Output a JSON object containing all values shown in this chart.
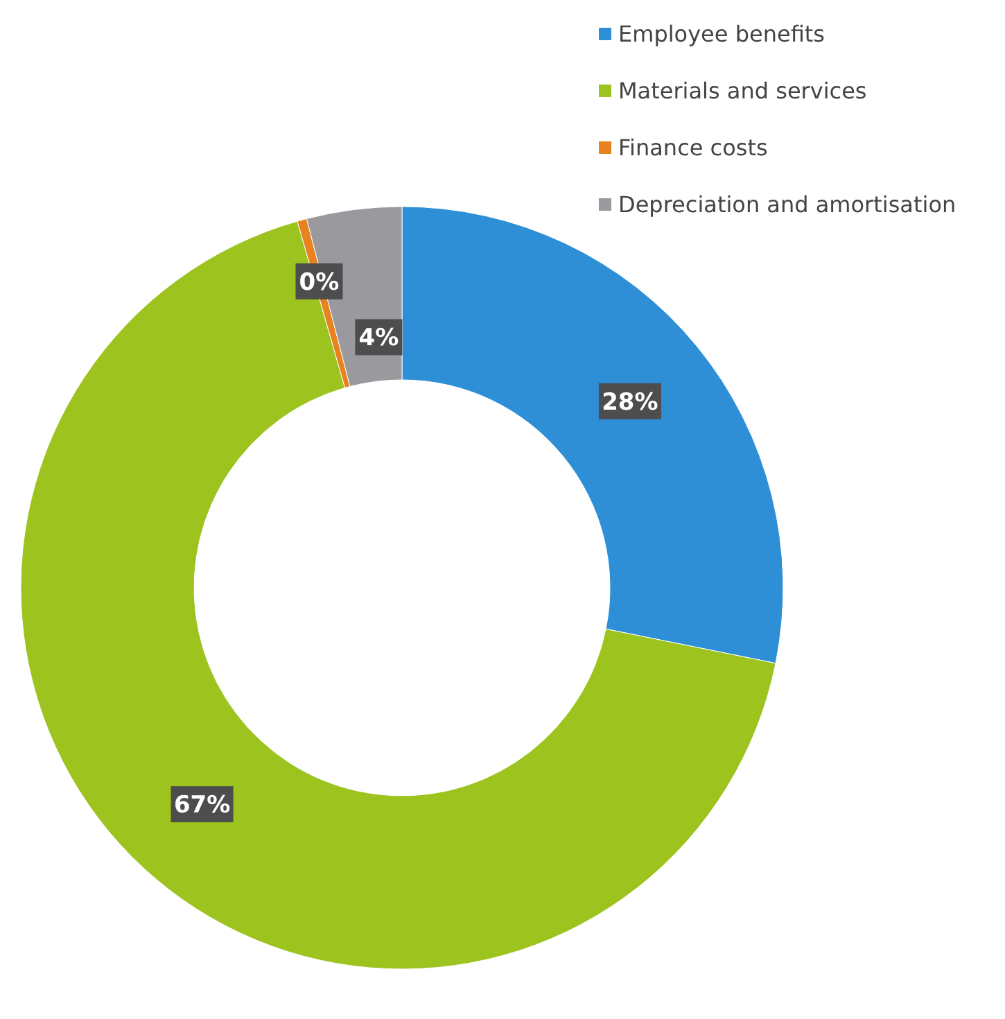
{
  "chart_data": {
    "type": "donut",
    "categories": [
      "Employee benefits",
      "Materials and services",
      "Finance costs",
      "Depreciation and amortisation"
    ],
    "values": [
      28,
      67,
      0.4,
      4
    ],
    "colors": [
      "#2e8fd6",
      "#9cc31e",
      "#e8821e",
      "#9a9a9e"
    ],
    "value_labels": [
      "28%",
      "67%",
      "0%",
      "4%"
    ],
    "legend": "top right"
  }
}
